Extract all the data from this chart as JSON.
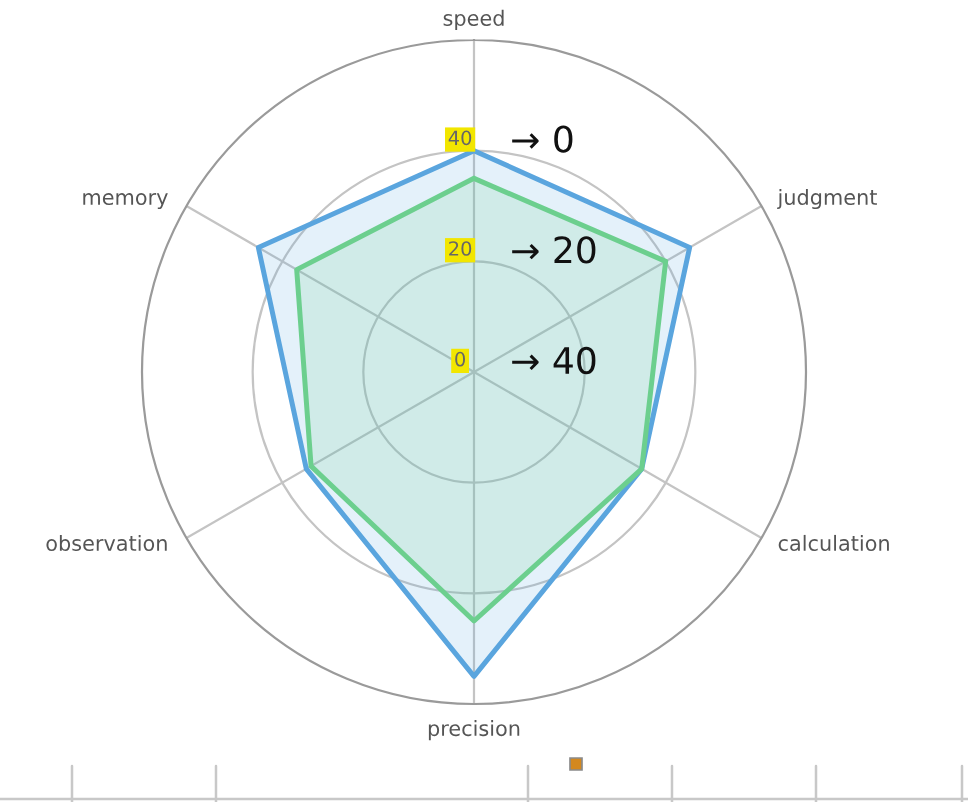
{
  "chart_data": {
    "type": "radar",
    "categories": [
      "speed",
      "judgment",
      "calculation",
      "precision",
      "observation",
      "memory"
    ],
    "series": [
      {
        "color": "#5aa5de",
        "values": [
          40,
          45,
          35,
          55,
          35,
          45
        ]
      },
      {
        "color": "#6ccf8e",
        "values": [
          35,
          40,
          35,
          45,
          34,
          37
        ]
      }
    ],
    "ylim": [
      0,
      60
    ],
    "yticks": [
      0,
      20,
      40
    ],
    "grid": true,
    "annotations": [
      "→ 0",
      "→ 20",
      "→ 40"
    ]
  }
}
